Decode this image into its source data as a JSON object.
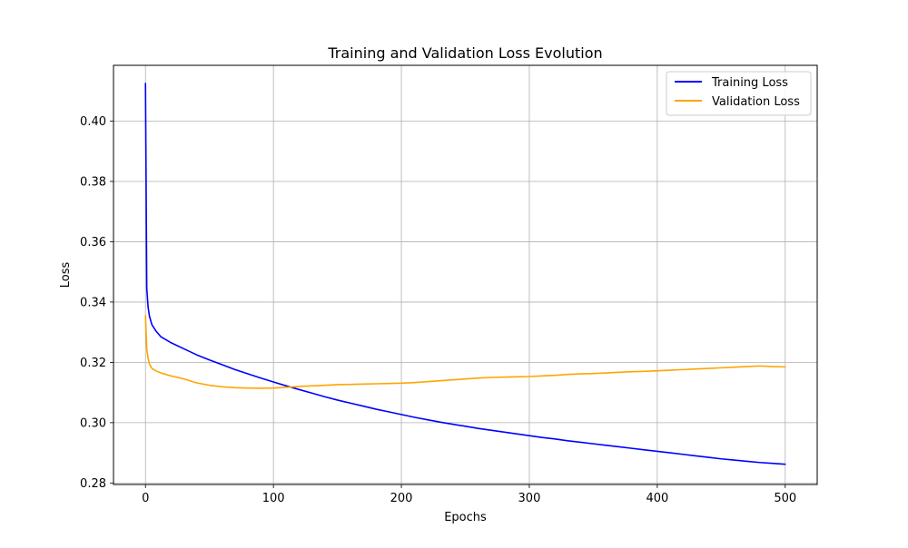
{
  "chart_data": {
    "type": "line",
    "title": "Training and Validation Loss Evolution",
    "xlabel": "Epochs",
    "ylabel": "Loss",
    "xlim": [
      -25,
      525
    ],
    "ylim": [
      0.2795,
      0.4185
    ],
    "xticks": [
      0,
      100,
      200,
      300,
      400,
      500
    ],
    "xtick_labels": [
      "0",
      "100",
      "200",
      "300",
      "400",
      "500"
    ],
    "yticks": [
      0.28,
      0.3,
      0.32,
      0.34,
      0.36,
      0.38,
      0.4
    ],
    "ytick_labels": [
      "0.28",
      "0.30",
      "0.32",
      "0.34",
      "0.36",
      "0.38",
      "0.40"
    ],
    "grid": true,
    "legend_position": "top-right",
    "x": [
      0,
      1,
      2,
      3,
      5,
      8,
      12,
      16,
      20,
      30,
      40,
      50,
      60,
      70,
      80,
      90,
      100,
      110,
      120,
      130,
      140,
      150,
      160,
      170,
      180,
      190,
      200,
      210,
      220,
      230,
      240,
      250,
      260,
      270,
      280,
      290,
      300,
      310,
      320,
      330,
      340,
      350,
      360,
      370,
      380,
      390,
      400,
      410,
      420,
      430,
      440,
      450,
      460,
      470,
      480,
      490,
      500
    ],
    "series": [
      {
        "name": "Training Loss",
        "color": "#0000ff",
        "values": [
          0.4125,
          0.3445,
          0.3385,
          0.3355,
          0.3325,
          0.3305,
          0.3285,
          0.3275,
          0.3265,
          0.3245,
          0.3225,
          0.3208,
          0.3192,
          0.3176,
          0.3162,
          0.3148,
          0.3135,
          0.3122,
          0.311,
          0.3098,
          0.3086,
          0.3075,
          0.3065,
          0.3055,
          0.3045,
          0.3036,
          0.3027,
          0.3018,
          0.301,
          0.3002,
          0.2995,
          0.2988,
          0.2981,
          0.2975,
          0.2969,
          0.2963,
          0.2957,
          0.2951,
          0.2946,
          0.294,
          0.2935,
          0.293,
          0.2925,
          0.292,
          0.2915,
          0.291,
          0.2905,
          0.29,
          0.2895,
          0.289,
          0.2885,
          0.288,
          0.2876,
          0.2872,
          0.2868,
          0.2865,
          0.2862
        ]
      },
      {
        "name": "Validation Loss",
        "color": "#ffa500",
        "values": [
          0.3355,
          0.3245,
          0.3215,
          0.3195,
          0.318,
          0.3172,
          0.3165,
          0.316,
          0.3155,
          0.3145,
          0.3132,
          0.3124,
          0.3119,
          0.3116,
          0.3115,
          0.3114,
          0.3115,
          0.3117,
          0.312,
          0.3122,
          0.3124,
          0.3126,
          0.3127,
          0.3128,
          0.3129,
          0.313,
          0.3131,
          0.3133,
          0.3136,
          0.3139,
          0.3142,
          0.3145,
          0.3148,
          0.315,
          0.3151,
          0.3152,
          0.3153,
          0.3155,
          0.3157,
          0.316,
          0.3162,
          0.3163,
          0.3165,
          0.3167,
          0.3169,
          0.317,
          0.3172,
          0.3174,
          0.3176,
          0.3178,
          0.318,
          0.3182,
          0.3184,
          0.3186,
          0.3188,
          0.3186,
          0.3185
        ]
      }
    ]
  }
}
